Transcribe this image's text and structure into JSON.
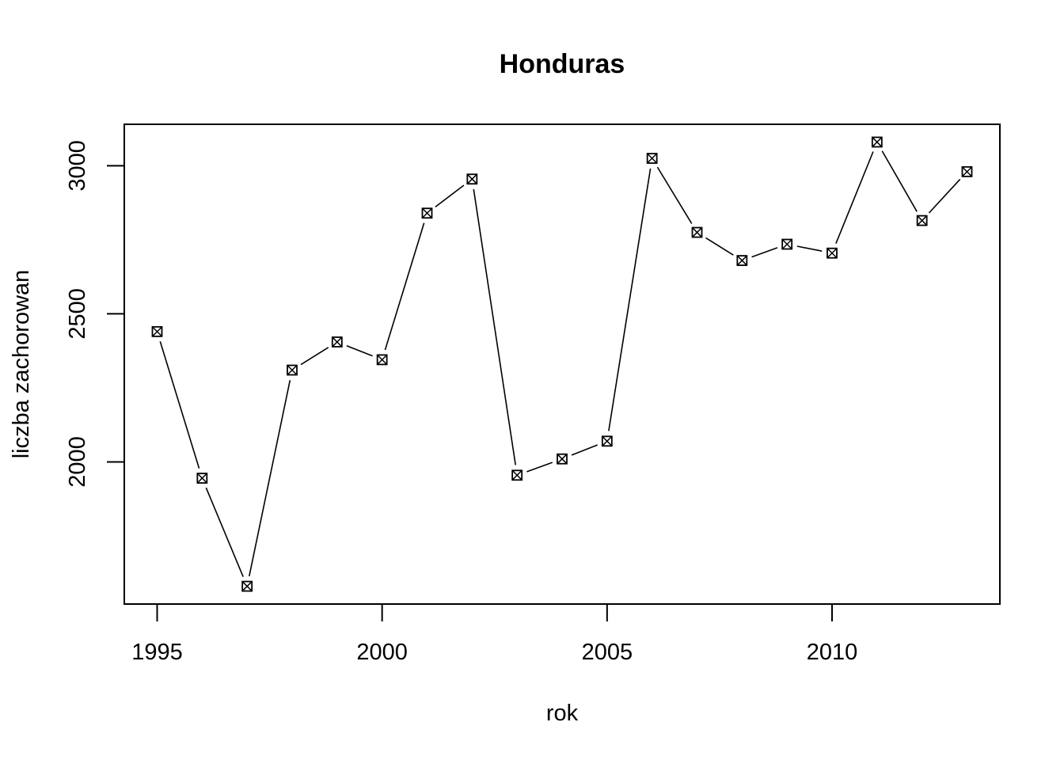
{
  "chart_data": {
    "type": "line",
    "title": "Honduras",
    "xlabel": "rok",
    "ylabel": "liczba zachorowan",
    "x": [
      1995,
      1996,
      1997,
      1998,
      1999,
      2000,
      2001,
      2002,
      2003,
      2004,
      2005,
      2006,
      2007,
      2008,
      2009,
      2010,
      2011,
      2012,
      2013
    ],
    "series": [
      {
        "values": [
          2440,
          1945,
          1580,
          2310,
          2405,
          2345,
          2840,
          2955,
          1955,
          2010,
          2070,
          3025,
          2775,
          2680,
          2735,
          2705,
          3080,
          2815,
          2980
        ]
      }
    ],
    "xlim": [
      1994.27,
      2013.73
    ],
    "ylim": [
      1520,
      3140
    ],
    "xticks": [
      "1995",
      "2000",
      "2005",
      "2010"
    ],
    "yticks": [
      "2000",
      "2500",
      "3000"
    ],
    "marker": "box-x",
    "grid": false,
    "legend": false
  }
}
